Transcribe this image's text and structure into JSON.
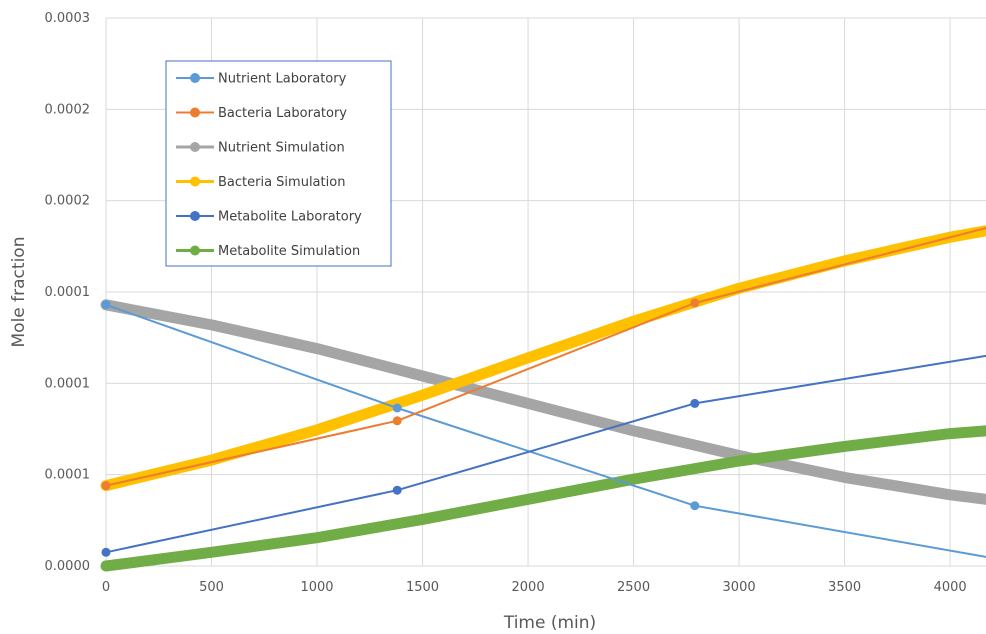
{
  "chart_data": {
    "type": "line",
    "title": "",
    "xlabel": "Time (min)",
    "ylabel": "Mole fraction",
    "xlim": [
      0,
      4170
    ],
    "ylim": [
      0,
      0.0003
    ],
    "x_ticks": [
      0,
      500,
      1000,
      1500,
      2000,
      2500,
      3000,
      3500,
      4000
    ],
    "y_ticks": [
      0,
      5e-05,
      0.0001,
      0.00015,
      0.0002,
      0.00025,
      0.0003
    ],
    "y_tick_labels": [
      "0.0000",
      "0.0001",
      "0.0001",
      "0.0001",
      "0.0002",
      "0.0002",
      "0.0003"
    ],
    "grid": "both",
    "legend_position": "top-left",
    "series": [
      {
        "name": "Nutrient Laboratory",
        "color": "#5B9BD5",
        "style": "thin",
        "markers": true,
        "x": [
          0,
          1380,
          2790,
          4170
        ],
        "y": [
          0.000143,
          8.65e-05,
          3.3e-05,
          5e-06
        ]
      },
      {
        "name": "Bacteria Laboratory",
        "color": "#ED7D31",
        "style": "thin",
        "markers": true,
        "x": [
          0,
          1380,
          2790,
          4170
        ],
        "y": [
          4.4e-05,
          7.95e-05,
          0.000144,
          0.000185
        ]
      },
      {
        "name": "Nutrient Simulation",
        "color": "#A5A5A5",
        "style": "thick",
        "markers": false,
        "x": [
          0,
          500,
          1000,
          1500,
          2000,
          2500,
          3000,
          3500,
          4000,
          4170
        ],
        "y": [
          0.000143,
          0.000132,
          0.000119,
          0.000104,
          8.9e-05,
          7.4e-05,
          6.05e-05,
          4.85e-05,
          3.9e-05,
          3.65e-05
        ]
      },
      {
        "name": "Bacteria Simulation",
        "color": "#FFC000",
        "style": "thick",
        "markers": false,
        "x": [
          0,
          500,
          1000,
          1500,
          2000,
          2500,
          3000,
          3500,
          4000,
          4170
        ],
        "y": [
          4.4e-05,
          5.8e-05,
          7.45e-05,
          9.35e-05,
          0.000114,
          0.000134,
          0.000152,
          0.000167,
          0.00018,
          0.0001835
        ]
      },
      {
        "name": "Metabolite Laboratory",
        "color": "#4472C4",
        "style": "thin",
        "markers": true,
        "x": [
          0,
          1380,
          2790,
          4170
        ],
        "y": [
          7.5e-06,
          4.15e-05,
          8.9e-05,
          0.000115
        ]
      },
      {
        "name": "Metabolite Simulation",
        "color": "#70AD47",
        "style": "thick",
        "markers": false,
        "x": [
          0,
          500,
          1000,
          1500,
          2000,
          2500,
          3000,
          3500,
          4000,
          4170
        ],
        "y": [
          0.0,
          7.5e-06,
          1.55e-05,
          2.55e-05,
          3.65e-05,
          4.75e-05,
          5.75e-05,
          6.55e-05,
          7.25e-05,
          7.4e-05
        ]
      }
    ]
  }
}
